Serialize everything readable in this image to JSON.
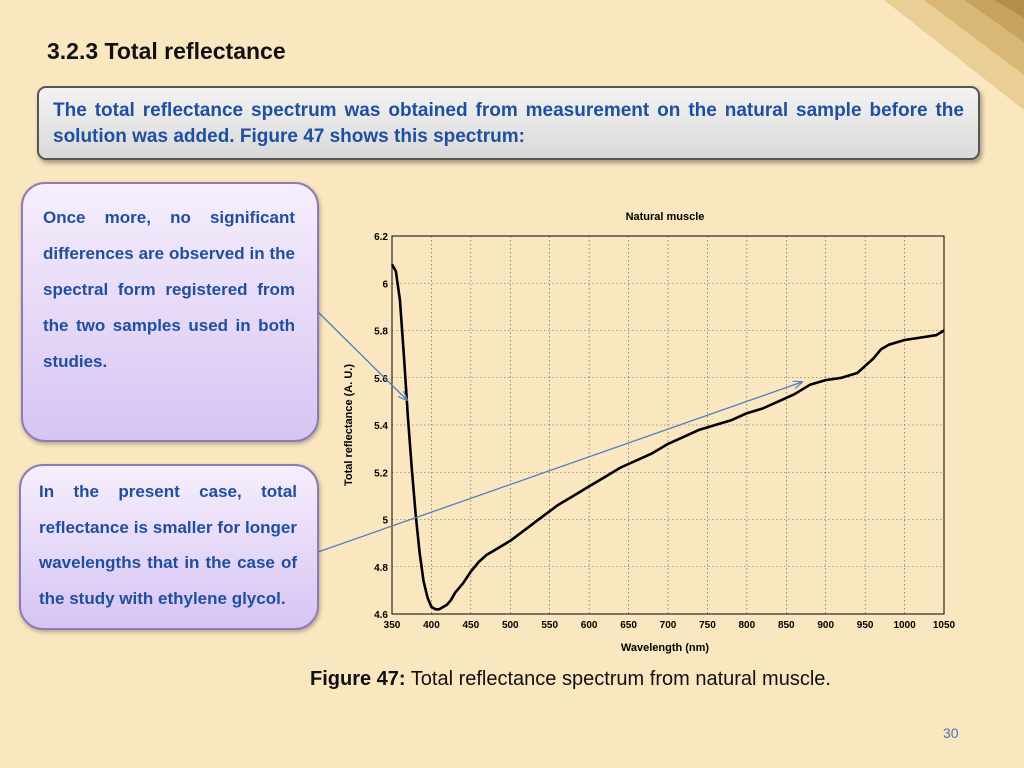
{
  "slide": {
    "title": "3.2.3 Total reflectance",
    "intro": "The total reflectance spectrum was obtained from measurement on the natural sample before the solution was added. Figure 47 shows this spectrum:",
    "note1": "Once more, no significant differences are observed in the spectral form registered from the two samples used in both studies.",
    "note2": "In the present case, total reflectance is smaller for longer wavelengths that in the case of the study with ethylene glycol.",
    "caption_label": "Figure 47:",
    "caption_text": " Total reflectance spectrum from natural muscle.",
    "page_number": "30"
  },
  "colors": {
    "background": "#fae6bf",
    "text_blue": "#1f4fa0",
    "arrow": "#4f81bd"
  },
  "chart_data": {
    "type": "line",
    "title": "Natural muscle",
    "xlabel": "Wavelength (nm)",
    "ylabel": "Total reflectance (A. U.)",
    "xlim": [
      350,
      1050
    ],
    "ylim": [
      4.6,
      6.2
    ],
    "x_ticks": [
      350,
      400,
      450,
      500,
      550,
      600,
      650,
      700,
      750,
      800,
      850,
      900,
      950,
      1000,
      1050
    ],
    "y_ticks": [
      4.6,
      4.8,
      5.0,
      5.2,
      5.4,
      5.6,
      5.8,
      6.0,
      6.2
    ],
    "y_tick_labels": [
      "4.6",
      "4.8",
      "5",
      "5.2",
      "5.4",
      "5.6",
      "5.8",
      "6",
      "6.2"
    ],
    "grid": true,
    "series": [
      {
        "x": [
          350,
          355,
          360,
          365,
          370,
          375,
          380,
          385,
          390,
          395,
          400,
          405,
          410,
          415,
          420,
          425,
          430,
          440,
          450,
          460,
          470,
          480,
          500,
          520,
          540,
          560,
          580,
          600,
          620,
          640,
          660,
          680,
          700,
          720,
          740,
          760,
          780,
          800,
          820,
          840,
          860,
          880,
          900,
          920,
          940,
          950,
          960,
          970,
          980,
          1000,
          1020,
          1040,
          1050
        ],
        "y": [
          6.08,
          6.05,
          5.93,
          5.7,
          5.44,
          5.22,
          5.02,
          4.86,
          4.74,
          4.67,
          4.63,
          4.62,
          4.62,
          4.63,
          4.64,
          4.66,
          4.69,
          4.73,
          4.78,
          4.82,
          4.85,
          4.87,
          4.91,
          4.96,
          5.01,
          5.06,
          5.1,
          5.14,
          5.18,
          5.22,
          5.25,
          5.28,
          5.32,
          5.35,
          5.38,
          5.4,
          5.42,
          5.45,
          5.47,
          5.5,
          5.53,
          5.57,
          5.59,
          5.6,
          5.62,
          5.65,
          5.68,
          5.72,
          5.74,
          5.76,
          5.77,
          5.78,
          5.8
        ]
      }
    ]
  }
}
